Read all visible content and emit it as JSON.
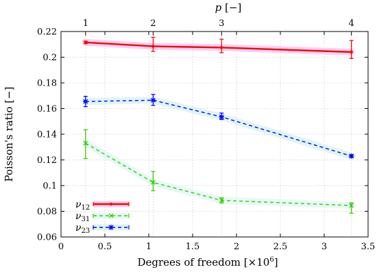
{
  "chart_data": {
    "type": "line",
    "xlabel": "Degrees of freedom [×10",
    "xlabel_sup": "6",
    "xlabel_close": "]",
    "ylabel": "Poisson's ratio [−]",
    "top_axis_label": "p [−]",
    "top_axis_label_symbol": "p",
    "top_axis_label_unit": " [−]",
    "xlim": [
      0,
      3.5
    ],
    "ylim": [
      0.06,
      0.22
    ],
    "x_ticks": [
      0,
      0.5,
      1,
      1.5,
      2,
      2.5,
      3,
      3.5
    ],
    "x_tick_labels": [
      "0",
      "0.5",
      "1",
      "1.5",
      "2",
      "2.5",
      "3",
      "3.5"
    ],
    "y_ticks": [
      0.06,
      0.08,
      0.1,
      0.12,
      0.14,
      0.16,
      0.18,
      0.2,
      0.22
    ],
    "y_tick_labels": [
      "0.06",
      "0.08",
      "0.1",
      "0.12",
      "0.14",
      "0.16",
      "0.18",
      "0.2",
      "0.22"
    ],
    "top_ticks": [
      {
        "x": 0.28,
        "label": "1"
      },
      {
        "x": 1.05,
        "label": "2"
      },
      {
        "x": 1.83,
        "label": "3"
      },
      {
        "x": 3.31,
        "label": "4"
      }
    ],
    "grid": true,
    "legend_position": "bottom-left",
    "x": [
      0.28,
      1.05,
      1.83,
      3.31
    ],
    "series": [
      {
        "name": "ν12",
        "name_base": "ν",
        "name_sub": "12",
        "color": "#ff0000",
        "line_style": "solid",
        "marker": "dot",
        "band_color": "#f3c6f3",
        "values": [
          0.2115,
          0.2085,
          0.2075,
          0.204
        ],
        "error_low": [
          0.2105,
          0.2045,
          0.2035,
          0.199
        ],
        "error_high": [
          0.2125,
          0.2155,
          0.214,
          0.213
        ]
      },
      {
        "name": "ν31",
        "name_base": "ν",
        "name_sub": "31",
        "color": "#33cc00",
        "line_style": "dashed",
        "marker": "x",
        "band_color": "#e0f7f3",
        "values": [
          0.133,
          0.1025,
          0.0885,
          0.0845
        ],
        "error_low": [
          0.121,
          0.096,
          0.0865,
          0.0785
        ],
        "error_high": [
          0.1435,
          0.111,
          0.0905,
          0.0865
        ]
      },
      {
        "name": "ν23",
        "name_base": "ν",
        "name_sub": "23",
        "color": "#0000ff",
        "line_style": "dashed",
        "marker": "star",
        "band_color": "#d6f3f0",
        "values": [
          0.1655,
          0.1665,
          0.1535,
          0.123
        ],
        "error_low": [
          0.1615,
          0.1625,
          0.1515,
          0.122
        ],
        "error_high": [
          0.1695,
          0.171,
          0.1565,
          0.124
        ]
      }
    ]
  }
}
